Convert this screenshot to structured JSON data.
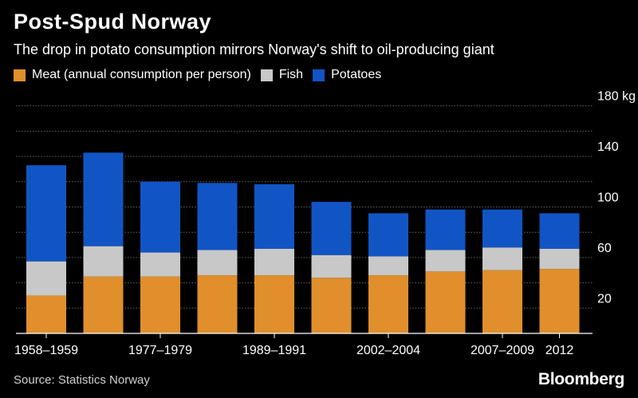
{
  "title": "Post-Spud Norway",
  "subtitle": "The drop in potato consumption mirrors Norway's shift to oil-producing giant",
  "source": "Source: Statistics Norway",
  "logo": "Bloomberg",
  "colors": {
    "meat": "#e08f2c",
    "fish": "#c8c8c8",
    "potatoes": "#1155c5",
    "grid": "#666666",
    "axis": "#ffffff"
  },
  "legend": [
    {
      "label": "Meat (annual consumption per person)",
      "color": "#e08f2c"
    },
    {
      "label": "Fish",
      "color": "#c8c8c8"
    },
    {
      "label": "Potatoes",
      "color": "#1155c5"
    }
  ],
  "chart_data": {
    "type": "bar",
    "stacked": true,
    "title": "Post-Spud Norway",
    "subtitle": "The drop in potato consumption mirrors Norway's shift to oil-producing giant",
    "xlabel": "",
    "ylabel": "",
    "ylim": [
      0,
      180
    ],
    "y_unit_label": "180 kg",
    "y_ticks": [
      20,
      60,
      100,
      140,
      180
    ],
    "y_tick_labels": [
      "20",
      "60",
      "100",
      "140",
      "180 kg"
    ],
    "grid_lines": [
      20,
      40,
      60,
      80,
      100,
      120,
      140,
      160,
      180
    ],
    "categories": [
      "1958–1959",
      "",
      "1977–1979",
      "",
      "1989–1991",
      "",
      "2002–2004",
      "",
      "2007–2009",
      "2012"
    ],
    "x_tick_labels": [
      "1958–1959",
      "1977–1979",
      "1989–1991",
      "2002–2004",
      "2007–2009",
      "2012"
    ],
    "series": [
      {
        "name": "Meat (annual consumption per person)",
        "values": [
          30,
          45,
          45,
          46,
          46,
          44,
          46,
          49,
          50,
          51
        ]
      },
      {
        "name": "Fish",
        "values": [
          27,
          24,
          19,
          20,
          21,
          18,
          15,
          17,
          18,
          16
        ]
      },
      {
        "name": "Potatoes",
        "values": [
          76,
          74,
          56,
          53,
          51,
          42,
          34,
          32,
          30,
          28
        ]
      }
    ]
  }
}
